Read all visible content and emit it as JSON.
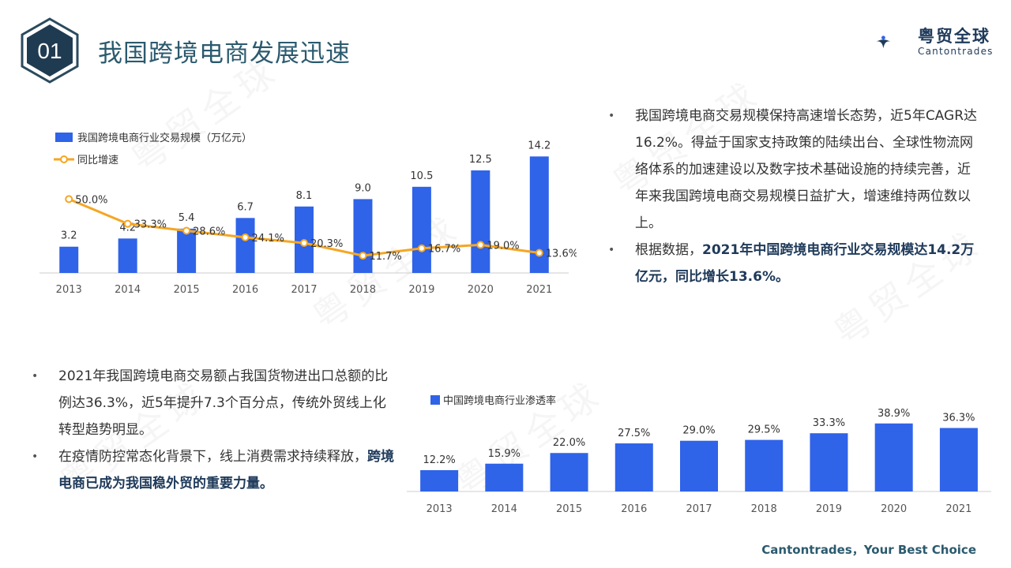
{
  "header": {
    "badge_number": "01",
    "title": "我国跨境电商发展迅速"
  },
  "logo": {
    "name_cn": "粤贸全球",
    "name_en": "Cantontrades"
  },
  "watermark_text": "粤贸全球",
  "colors": {
    "bar": "#2f63e8",
    "line": "#f5a623",
    "title": "#2b5a6e",
    "badge_border": "#2b4a5e",
    "badge_fill": "#1f3b52"
  },
  "chart_data": [
    {
      "type": "bar",
      "legend_placement": "top-left",
      "categories": [
        "2013",
        "2014",
        "2015",
        "2016",
        "2017",
        "2018",
        "2019",
        "2020",
        "2021"
      ],
      "series": [
        {
          "name": "我国跨境电商行业交易规模（万亿元）",
          "type": "bar",
          "values": [
            3.2,
            4.2,
            5.4,
            6.7,
            8.1,
            9.0,
            10.5,
            12.5,
            14.2
          ],
          "labels": [
            "3.2",
            "4.2",
            "5.4",
            "6.7",
            "8.1",
            "9.0",
            "10.5",
            "12.5",
            "14.2"
          ]
        },
        {
          "name": "同比增速",
          "type": "line",
          "values": [
            50.0,
            33.3,
            28.6,
            24.1,
            20.3,
            11.7,
            16.7,
            19.0,
            13.6
          ],
          "labels": [
            "50.0%",
            "33.3%",
            "28.6%",
            "24.1%",
            "20.3%",
            "11.7%",
            "16.7%",
            "19.0%",
            "13.6%"
          ]
        }
      ],
      "ylim": [
        0,
        15
      ],
      "y2lim": [
        0,
        60
      ],
      "grid": false
    },
    {
      "type": "bar",
      "legend_placement": "top-left",
      "categories": [
        "2013",
        "2014",
        "2015",
        "2016",
        "2017",
        "2018",
        "2019",
        "2020",
        "2021"
      ],
      "series": [
        {
          "name": "中国跨境电商行业渗透率",
          "values": [
            12.2,
            15.9,
            22.0,
            27.5,
            29.0,
            29.5,
            33.3,
            38.9,
            36.3
          ],
          "labels": [
            "12.2%",
            "15.9%",
            "22.0%",
            "27.5%",
            "29.0%",
            "29.5%",
            "33.3%",
            "38.9%",
            "36.3%"
          ]
        }
      ],
      "ylim": [
        0,
        45
      ],
      "grid": false
    }
  ],
  "bullets_right": [
    {
      "text": "我国跨境电商交易规模保持高速增长态势，近5年CAGR达16.2%。得益于国家支持政策的陆续出台、全球性物流网络体系的加速建设以及数字技术基础设施的持续完善，近年来我国跨境电商交易规模日益扩大，增速维持两位数以上。",
      "bold": ""
    },
    {
      "text": "根据数据，",
      "bold": "2021年中国跨境电商行业交易规模达14.2万亿元，同比增长13.6%。"
    }
  ],
  "bullets_left": [
    {
      "text": "2021年我国跨境电商交易额占我国货物进出口总额的比例达36.3%，近5年提升7.3个百分点，传统外贸线上化转型趋势明显。",
      "bold": ""
    },
    {
      "text": "在疫情防控常态化背景下，线上消费需求持续释放，",
      "bold": "跨境电商已成为我国稳外贸的重要力量。"
    }
  ],
  "bullet_symbol": "•",
  "footer": "Cantontrades，Your Best Choice"
}
